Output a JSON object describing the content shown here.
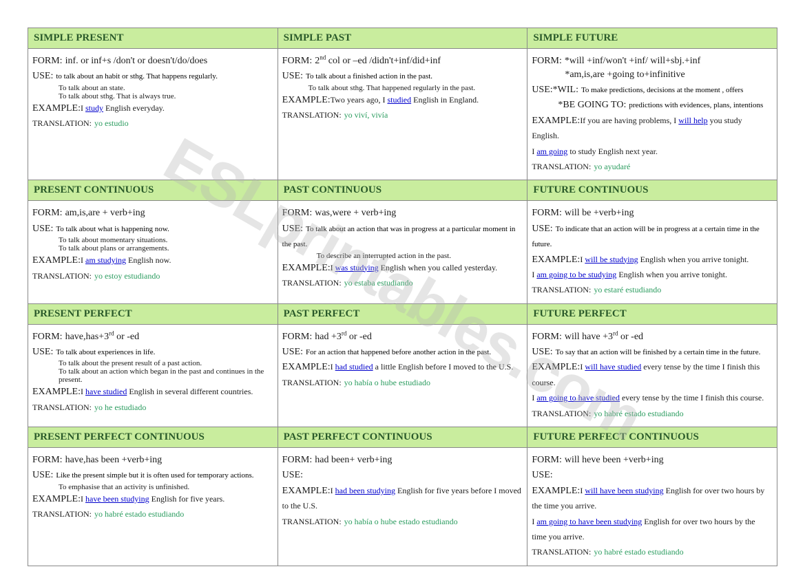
{
  "watermark": "ESLprintables.com",
  "table": {
    "headerColor": "#c9ed9e",
    "borderColor": "#888888",
    "linkColor": "#0000cc",
    "transColor": "#2b9c5f",
    "rows": [
      {
        "cells": [
          {
            "title": "SIMPLE PRESENT",
            "form": "inf. or inf+s /don't or doesn't/do/does",
            "useLines": [
              "to talk about an habit or sthg. That happens regularly.",
              "To talk about an state.",
              "To talk about sthg. That is always true."
            ],
            "examplePrefix": "I ",
            "exampleLink": "study",
            "exampleSuffix": " English everyday.",
            "translation": "yo estudio"
          },
          {
            "title": "SIMPLE PAST",
            "formHtml": "2<span class='sup'>nd</span> col or –ed /didn't+inf/did+inf",
            "useLines": [
              "To talk about a finished action in the past.",
              "To talk about sthg. That happened regularly in the past."
            ],
            "examplePrefix": "Two years ago, I ",
            "exampleLink": "studied",
            "exampleSuffix": " English in England.",
            "translation": "yo viví, vivía"
          },
          {
            "title": "SIMPLE FUTURE",
            "formLine1": "*will +inf/won't +inf/ will+sbj.+inf",
            "formLine2": "*am,is,are +going to+infinitive",
            "useWil": "*WIL:",
            "useWilText": "To make predictions, decisions  at the moment , offers",
            "useBgt": "*BE GOING TO:",
            "useBgtText": "predictions with evidences, plans, intentions",
            "examplePrefix": "If you are having problems, I ",
            "exampleLink": "will help",
            "exampleSuffix": " you study English.",
            "example2Prefix": "I ",
            "example2Link": "am going",
            "example2Suffix": " to study English next year.",
            "translation": "yo ayudaré"
          }
        ]
      },
      {
        "cells": [
          {
            "title": "PRESENT CONTINUOUS",
            "form": "am,is,are + verb+ing",
            "useLines": [
              "To talk about what is happening now.",
              "To talk about momentary situations.",
              "To talk about plans or arrangements."
            ],
            "examplePrefix": "I ",
            "exampleLink": "am studying",
            "exampleSuffix": " English now.",
            "translation": "yo estoy estudiando"
          },
          {
            "title": "PAST CONTINUOUS",
            "form": "was,were + verb+ing",
            "useLines": [
              "To talk about an action that was in progress at a particular moment in the past.",
              "To describe an interrupted action in the past."
            ],
            "examplePrefix": "I ",
            "exampleLink": "was studying",
            "exampleSuffix": " English when you called yesterday.",
            "translation": "yo estaba estudiando"
          },
          {
            "title": "FUTURE CONTINUOUS",
            "form": "will be +verb+ing",
            "useLines": [
              "To indicate that an action will be in progress at a certain time in the future."
            ],
            "examplePrefix": "I ",
            "exampleLink": "will be studying",
            "exampleSuffix": " English when you arrive tonight.",
            "example2Prefix": "I ",
            "example2Link": "am going to be studying",
            "example2Suffix": " English when you arrive tonight.",
            "translation": "yo estaré estudiando"
          }
        ]
      },
      {
        "cells": [
          {
            "title": "PRESENT PERFECT",
            "formHtml": "have,has+3<span class='sup'>rd</span> or -ed",
            "useLines": [
              "To talk about experiences in life.",
              "To talk about the present result of a past action.",
              "To talk about an action which began in the past and continues in the present."
            ],
            "examplePrefix": "I ",
            "exampleLink": "have studied",
            "exampleSuffix": " English in several different countries.",
            "translation": "yo he estudiado"
          },
          {
            "title": "PAST PERFECT",
            "formHtml": "had +3<span class='sup'>rd</span> or -ed",
            "useLines": [
              "For an action that happened before another action in the past."
            ],
            "examplePrefix": "I ",
            "exampleLink": "had studied",
            "exampleSuffix": " a little English before I moved to the U.S.",
            "translation": "yo había o hube estudiado"
          },
          {
            "title": "FUTURE PERFECT",
            "formHtml": "will have +3<span class='sup'>rd</span> or -ed",
            "useLines": [
              "To say that an action will be finished by a certain time in the future."
            ],
            "examplePrefix": "I ",
            "exampleLink": "will have studied",
            "exampleSuffix": " every tense by the time I finish this course.",
            "example2Prefix": "I ",
            "example2Link": "am going to have studied",
            "example2Suffix": " every tense by the time I finish this course.",
            "translation": "yo habré estado estudiando"
          }
        ]
      },
      {
        "cells": [
          {
            "title": "PRESENT PERFECT CONTINUOUS",
            "form": "have,has  been +verb+ing",
            "useLines": [
              "Like the present simple but it is often used for temporary actions.",
              "To emphasise that an activity is unfinished."
            ],
            "examplePrefix": "I ",
            "exampleLink": "have been studying",
            "exampleSuffix": " English for five years.",
            "translation": "yo habré estado estudiando"
          },
          {
            "title": "PAST PERFECT CONTINUOUS",
            "form": "had been+ verb+ing",
            "useLines": [],
            "useBlank": true,
            "examplePrefix": "I ",
            "exampleLink": "had been studying",
            "exampleSuffix": " English for five years before I moved to the U.S.",
            "translation": "yo había o hube estado estudiando"
          },
          {
            "title": "FUTURE PERFECT CONTINUOUS",
            "form": "will heve been +verb+ing",
            "useLines": [],
            "useBlank": true,
            "examplePrefix": "I ",
            "exampleLink": "will have been studying",
            "exampleSuffix": " English for over two hours by the time you arrive.",
            "example2Prefix": "I ",
            "example2Link": "am going to have been studying",
            "example2Suffix": " English for over two hours by the time you arrive.",
            "translation": "yo habré estado estudiando"
          }
        ]
      }
    ]
  },
  "labels": {
    "form": "FORM:",
    "use": "USE:",
    "example": "EXAMPLE:",
    "translation": "TRANSLATION:"
  }
}
